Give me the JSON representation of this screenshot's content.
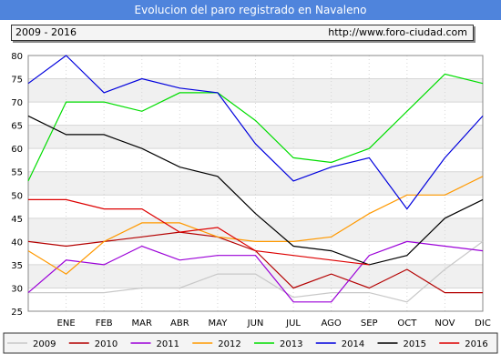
{
  "header": {
    "title": "Evolucion del paro registrado en Navaleno",
    "period": "2009 - 2016",
    "url": "http://www.foro-ciudad.com"
  },
  "chart_data": {
    "type": "line",
    "title": "Evolucion del paro registrado en Navaleno",
    "categories": [
      "",
      "ENE",
      "FEB",
      "MAR",
      "ABR",
      "MAY",
      "JUN",
      "JUL",
      "AGO",
      "SEP",
      "OCT",
      "NOV",
      "DIC"
    ],
    "ylim": [
      25,
      80
    ],
    "yticks": [
      25,
      30,
      35,
      40,
      45,
      50,
      55,
      60,
      65,
      70,
      75,
      80
    ],
    "grid": "horizontal bands",
    "legend_position": "bottom",
    "series": [
      {
        "name": "2009",
        "color": "#c8c8c8",
        "values": [
          29,
          29,
          29,
          30,
          30,
          33,
          33,
          28,
          29,
          29,
          27,
          34,
          40
        ]
      },
      {
        "name": "2010",
        "color": "#b40000",
        "values": [
          40,
          39,
          40,
          41,
          42,
          41,
          38,
          30,
          33,
          30,
          34,
          29,
          29
        ]
      },
      {
        "name": "2011",
        "color": "#9b00d8",
        "values": [
          29,
          36,
          35,
          39,
          36,
          37,
          37,
          27,
          27,
          37,
          40,
          39,
          38
        ]
      },
      {
        "name": "2012",
        "color": "#ff9900",
        "values": [
          38,
          33,
          40,
          44,
          44,
          41,
          40,
          40,
          41,
          46,
          50,
          50,
          54
        ]
      },
      {
        "name": "2013",
        "color": "#00dd00",
        "values": [
          53,
          70,
          70,
          68,
          72,
          72,
          66,
          58,
          57,
          60,
          68,
          76,
          74
        ]
      },
      {
        "name": "2014",
        "color": "#0000dd",
        "values": [
          74,
          80,
          72,
          75,
          73,
          72,
          61,
          53,
          56,
          58,
          47,
          58,
          67
        ]
      },
      {
        "name": "2015",
        "color": "#000000",
        "values": [
          67,
          63,
          63,
          60,
          56,
          54,
          46,
          39,
          38,
          35,
          37,
          45,
          49
        ]
      },
      {
        "name": "2016",
        "color": "#dd0000",
        "values": [
          49,
          49,
          47,
          47,
          42,
          43,
          38,
          37,
          36,
          35,
          null,
          null,
          null
        ]
      }
    ]
  }
}
